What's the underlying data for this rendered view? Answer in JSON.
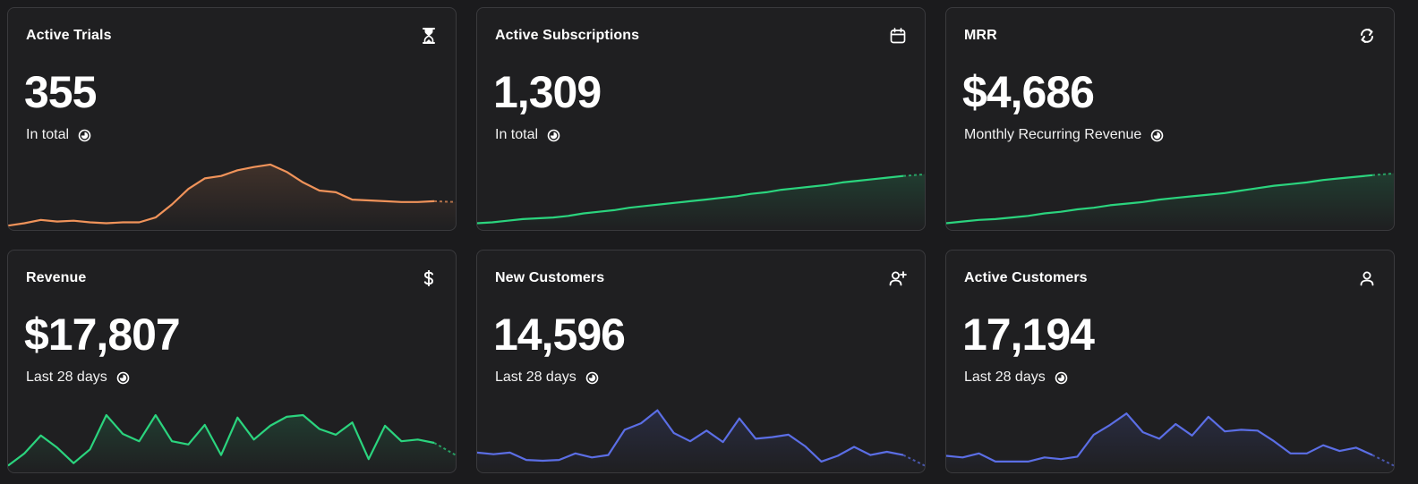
{
  "cards": [
    {
      "title": "Active Trials",
      "value": "355",
      "subtitle": "In total",
      "icon": "hourglass-icon",
      "color": "#f0935a",
      "chart_data": {
        "type": "line",
        "values": [
          2,
          5,
          9,
          7,
          8,
          6,
          5,
          6,
          6,
          12,
          28,
          47,
          60,
          63,
          70,
          74,
          77,
          68,
          55,
          45,
          43,
          34,
          33,
          32,
          31,
          31,
          32,
          31
        ],
        "ylim": [
          0,
          100
        ]
      }
    },
    {
      "title": "Active Subscriptions",
      "value": "1,309",
      "subtitle": "In total",
      "icon": "calendar-icon",
      "color": "#2bd47e",
      "chart_data": {
        "type": "line",
        "values": [
          5,
          6,
          8,
          10,
          11,
          12,
          14,
          17,
          19,
          21,
          24,
          26,
          28,
          30,
          32,
          34,
          36,
          38,
          41,
          43,
          46,
          48,
          50,
          52,
          55,
          57,
          59,
          61,
          63,
          65
        ],
        "ylim": [
          0,
          100
        ]
      }
    },
    {
      "title": "MRR",
      "value": "$4,686",
      "subtitle": "Monthly Recurring Revenue",
      "icon": "refresh-icon",
      "color": "#2bd47e",
      "chart_data": {
        "type": "line",
        "values": [
          5,
          7,
          9,
          10,
          12,
          14,
          17,
          19,
          22,
          24,
          27,
          29,
          31,
          34,
          36,
          38,
          40,
          42,
          45,
          48,
          51,
          53,
          55,
          58,
          60,
          62,
          64,
          66
        ],
        "ylim": [
          0,
          100
        ]
      }
    },
    {
      "title": "Revenue",
      "value": "$17,807",
      "subtitle": "Last 28 days",
      "icon": "dollar-icon",
      "color": "#2bd47e",
      "chart_data": {
        "type": "line",
        "values": [
          5,
          20,
          42,
          27,
          8,
          25,
          67,
          44,
          35,
          67,
          35,
          31,
          55,
          18,
          64,
          37,
          54,
          65,
          67,
          50,
          43,
          58,
          13,
          54,
          35,
          37,
          33,
          18
        ],
        "ylim": [
          0,
          100
        ]
      }
    },
    {
      "title": "New Customers",
      "value": "14,596",
      "subtitle": "Last 28 days",
      "icon": "user-plus-icon",
      "color": "#5b6ee5",
      "chart_data": {
        "type": "line",
        "values": [
          21,
          19,
          21,
          12,
          11,
          12,
          20,
          15,
          18,
          49,
          57,
          73,
          45,
          35,
          48,
          34,
          63,
          38,
          40,
          43,
          29,
          10,
          17,
          28,
          18,
          22,
          18,
          5
        ],
        "ylim": [
          0,
          100
        ]
      }
    },
    {
      "title": "Active Customers",
      "value": "17,194",
      "subtitle": "Last 28 days",
      "icon": "user-icon",
      "color": "#5b6ee5",
      "chart_data": {
        "type": "line",
        "values": [
          17,
          15,
          20,
          10,
          10,
          10,
          15,
          13,
          16,
          43,
          55,
          69,
          46,
          38,
          56,
          42,
          65,
          47,
          49,
          48,
          35,
          20,
          20,
          30,
          23,
          27,
          18,
          5
        ],
        "ylim": [
          0,
          100
        ]
      }
    }
  ]
}
